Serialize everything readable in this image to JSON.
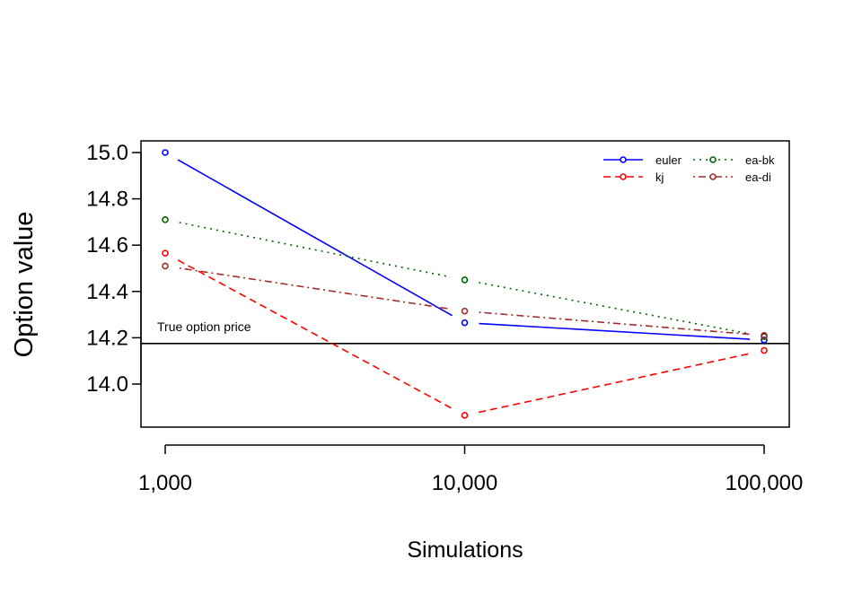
{
  "chart_data": {
    "type": "line",
    "xlabel": "Simulations",
    "ylabel": "Option value",
    "x_scale": "log",
    "x": [
      1000,
      10000,
      100000
    ],
    "x_tick_labels": [
      "1,000",
      "10,000",
      "100,000"
    ],
    "y_ticks": [
      14.0,
      14.2,
      14.4,
      14.6,
      14.8,
      15.0
    ],
    "y_tick_labels": [
      "14.0",
      "14.2",
      "14.4",
      "14.6",
      "14.8",
      "15.0"
    ],
    "ylim": [
      13.86,
      15.05
    ],
    "grid": false,
    "legend_position": "top-right",
    "series": [
      {
        "name": "euler",
        "values": [
          15.0,
          14.265,
          14.19
        ],
        "color": "#0000ff",
        "dash": "solid"
      },
      {
        "name": "kj",
        "values": [
          14.565,
          13.865,
          14.145
        ],
        "color": "#ff0000",
        "dash": "dashed"
      },
      {
        "name": "ea-bk",
        "values": [
          14.71,
          14.45,
          14.205
        ],
        "color": "#006400",
        "dash": "dotted"
      },
      {
        "name": "ea-di",
        "values": [
          14.51,
          14.315,
          14.21
        ],
        "color": "#a52a2a",
        "dash": "dotdash"
      }
    ],
    "reference_line": {
      "value": 14.175,
      "label": "True option price",
      "color": "#000000"
    }
  }
}
